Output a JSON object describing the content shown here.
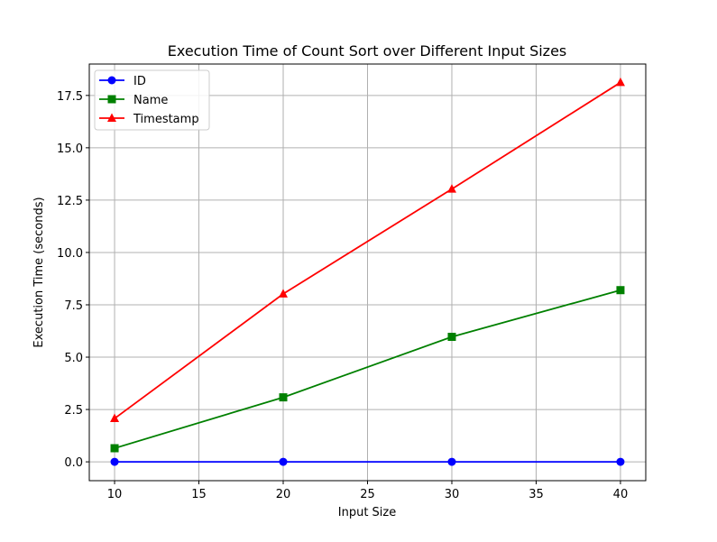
{
  "chart_data": {
    "type": "line",
    "title": "Execution Time of Count Sort over Different Input Sizes",
    "xlabel": "Input Size",
    "ylabel": "Execution Time (seconds)",
    "x": [
      10,
      20,
      30,
      40
    ],
    "xlim": [
      8.5,
      41.5
    ],
    "ylim": [
      -0.9,
      19.0
    ],
    "xticks": [
      10,
      15,
      20,
      25,
      30,
      35,
      40
    ],
    "yticks": [
      0.0,
      2.5,
      5.0,
      7.5,
      10.0,
      12.5,
      15.0,
      17.5
    ],
    "grid": true,
    "legend_position": "top-left",
    "series": [
      {
        "name": "ID",
        "values": [
          0.0,
          0.0,
          0.0,
          0.0
        ],
        "color": "#0000ff",
        "marker": "circle"
      },
      {
        "name": "Name",
        "values": [
          0.65,
          3.08,
          5.97,
          8.2
        ],
        "color": "#008000",
        "marker": "square"
      },
      {
        "name": "Timestamp",
        "values": [
          2.07,
          8.02,
          13.03,
          18.12
        ],
        "color": "#ff0000",
        "marker": "triangle"
      }
    ]
  }
}
